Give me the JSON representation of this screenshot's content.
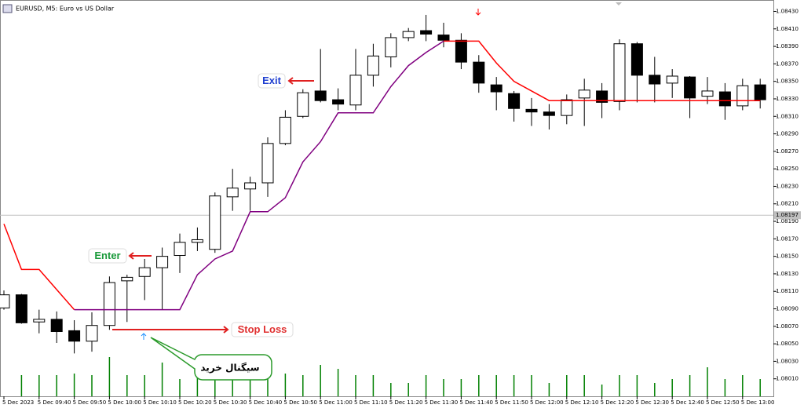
{
  "chart_data": {
    "type": "candlestick",
    "title": "EURUSD, M5:  Euro vs US Dollar",
    "categories": [
      "5 Dec 2023",
      null,
      "5 Dec 09:40",
      null,
      "5 Dec 09:50",
      null,
      "5 Dec 10:00",
      null,
      "5 Dec 10:10",
      null,
      "5 Dec 10:20",
      null,
      "5 Dec 10:30",
      null,
      "5 Dec 10:40",
      null,
      "5 Dec 10:50",
      null,
      "5 Dec 11:00",
      null,
      "5 Dec 11:10",
      null,
      "5 Dec 11:20",
      null,
      "5 Dec 11:30",
      null,
      "5 Dec 11:40",
      null,
      "5 Dec 11:50",
      null,
      "5 Dec 12:00",
      null,
      "5 Dec 12:10",
      null,
      "5 Dec 12:20",
      null,
      "5 Dec 12:30",
      null,
      "5 Dec 12:40",
      null,
      "5 Dec 12:50",
      null,
      "5 Dec 13:00",
      null
    ],
    "open": [
      1.08091,
      1.08106,
      1.08075,
      1.08078,
      1.08065,
      1.08053,
      1.08071,
      1.08122,
      1.08127,
      1.08137,
      1.08151,
      1.08166,
      1.08158,
      1.08218,
      1.08227,
      1.08234,
      1.08279,
      1.0831,
      1.08339,
      1.08329,
      1.08323,
      1.08357,
      1.08378,
      1.084,
      1.08408,
      1.08403,
      1.08397,
      1.08372,
      1.08346,
      1.08336,
      1.08318,
      1.08315,
      1.08311,
      1.08331,
      1.08339,
      1.08327,
      1.08393,
      1.08357,
      1.08348,
      1.08355,
      1.08333,
      1.08338,
      1.08322,
      1.08346
    ],
    "high": [
      1.08111,
      1.08107,
      1.08089,
      1.08087,
      1.08077,
      1.08086,
      1.08127,
      1.08129,
      1.08147,
      1.0816,
      1.08176,
      1.08183,
      1.08223,
      1.0825,
      1.08241,
      1.08286,
      1.08317,
      1.08341,
      1.08387,
      1.08342,
      1.08387,
      1.08393,
      1.08405,
      1.08411,
      1.08426,
      1.08417,
      1.08405,
      1.0838,
      1.08355,
      1.08339,
      1.08331,
      1.08324,
      1.08335,
      1.08353,
      1.08348,
      1.08398,
      1.08395,
      1.08378,
      1.08364,
      1.08356,
      1.08355,
      1.08348,
      1.08353,
      1.08353
    ],
    "low": [
      1.08089,
      1.08073,
      1.08062,
      1.08051,
      1.08039,
      1.08041,
      1.08066,
      1.08075,
      1.081,
      1.08089,
      1.08131,
      1.08156,
      1.08154,
      1.08202,
      1.08202,
      1.08218,
      1.08277,
      1.08308,
      1.08326,
      1.08317,
      1.08317,
      1.08344,
      1.08366,
      1.08396,
      1.08396,
      1.08389,
      1.08364,
      1.08337,
      1.08317,
      1.08304,
      1.08299,
      1.08295,
      1.08301,
      1.08299,
      1.08308,
      1.08317,
      1.08326,
      1.08326,
      1.08331,
      1.08308,
      1.08324,
      1.08306,
      1.08317,
      1.08319
    ],
    "close": [
      1.08106,
      1.08074,
      1.08078,
      1.08064,
      1.08053,
      1.08071,
      1.0812,
      1.08126,
      1.08137,
      1.0815,
      1.08166,
      1.08169,
      1.08219,
      1.08228,
      1.08234,
      1.08279,
      1.08309,
      1.08337,
      1.08328,
      1.08324,
      1.08357,
      1.08379,
      1.084,
      1.08407,
      1.08404,
      1.08397,
      1.08372,
      1.08348,
      1.08338,
      1.08319,
      1.08315,
      1.08311,
      1.08329,
      1.0834,
      1.08326,
      1.08393,
      1.08357,
      1.08347,
      1.08356,
      1.08331,
      1.08339,
      1.08322,
      1.08345,
      1.08329
    ],
    "up_color": "#ffffff",
    "down_color": "#000000",
    "series": [
      {
        "color": "#ff0000",
        "values": [
          1.08187,
          1.08135,
          1.08135,
          1.08112,
          1.08089,
          null,
          null,
          null,
          null,
          null,
          null,
          null,
          null,
          null,
          null,
          null,
          null,
          null,
          null,
          null,
          null,
          null,
          null,
          null,
          null,
          1.08396,
          1.08396,
          1.08396,
          1.08371,
          1.0835,
          1.08339,
          1.08328,
          1.08328,
          1.08328,
          1.08328,
          1.08328,
          1.08328,
          1.08328,
          1.08328,
          1.08328,
          1.08328,
          1.08328,
          1.08328,
          1.08328
        ]
      },
      {
        "color": "#800080",
        "values": [
          null,
          null,
          null,
          null,
          1.08089,
          1.08089,
          1.08089,
          1.08089,
          1.08089,
          1.08089,
          1.08089,
          1.08129,
          1.08147,
          1.08156,
          1.08201,
          1.08201,
          1.08217,
          1.08258,
          1.08281,
          1.08314,
          1.08314,
          1.08314,
          1.08344,
          1.08368,
          1.08383,
          1.08396,
          null,
          null,
          null,
          null,
          null,
          null,
          null,
          null,
          null,
          null,
          null,
          null,
          null,
          null,
          null,
          null,
          null,
          null
        ]
      }
    ],
    "volume": [
      null,
      27,
      27,
      27,
      29,
      27,
      50,
      27,
      27,
      43,
      22,
      27,
      23,
      25,
      22,
      27,
      29,
      27,
      40,
      35,
      27,
      27,
      17,
      17,
      27,
      22,
      22,
      27,
      27,
      27,
      27,
      17,
      27,
      27,
      15,
      27,
      27,
      17,
      22,
      27,
      37,
      22,
      27,
      22
    ],
    "volume_color": "#008000",
    "ylim": [
      1.0799,
      1.08443
    ],
    "yticks": [
      {
        "value": 1.0843,
        "label": "1.08430"
      },
      {
        "value": 1.0841,
        "label": "1.08410"
      },
      {
        "value": 1.0839,
        "label": "1.08390"
      },
      {
        "value": 1.0837,
        "label": "1.08370"
      },
      {
        "value": 1.0835,
        "label": "1.08350"
      },
      {
        "value": 1.0833,
        "label": "1.08330"
      },
      {
        "value": 1.0831,
        "label": "1.08310"
      },
      {
        "value": 1.0829,
        "label": "1.08290"
      },
      {
        "value": 1.0827,
        "label": "1.08270"
      },
      {
        "value": 1.0825,
        "label": "1.08250"
      },
      {
        "value": 1.0823,
        "label": "1.08230"
      },
      {
        "value": 1.0821,
        "label": "1.08210"
      },
      {
        "value": 1.0819,
        "label": "1.08190"
      },
      {
        "value": 1.0817,
        "label": "1.08170"
      },
      {
        "value": 1.0815,
        "label": "1.08150"
      },
      {
        "value": 1.0813,
        "label": "1.08130"
      },
      {
        "value": 1.0811,
        "label": "1.08110"
      },
      {
        "value": 1.0809,
        "label": "1.08090"
      },
      {
        "value": 1.0807,
        "label": "1.08070"
      },
      {
        "value": 1.0805,
        "label": "1.08050"
      },
      {
        "value": 1.0803,
        "label": "1.08030"
      },
      {
        "value": 1.0801,
        "label": "1.08010"
      }
    ],
    "current_price": {
      "value": 1.08197,
      "label": "1.08197"
    },
    "grid": false,
    "annotations": [
      {
        "text": "Exit"
      },
      {
        "text": "Enter"
      },
      {
        "text": "Stop Loss"
      },
      {
        "text": "سیگنال خرید"
      }
    ]
  }
}
